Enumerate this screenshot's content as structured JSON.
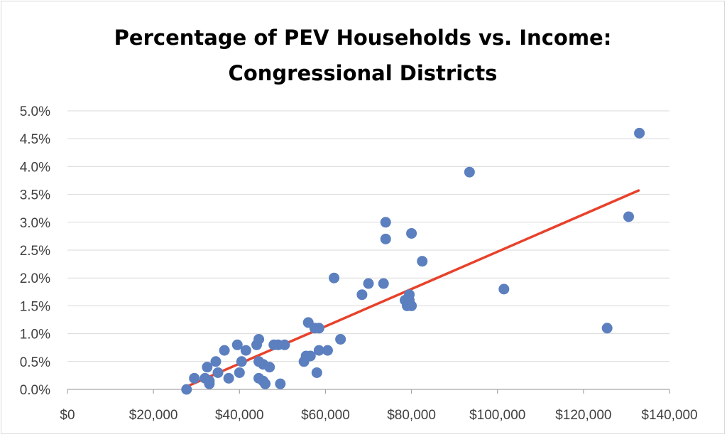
{
  "chart_data": {
    "type": "scatter",
    "title": "Percentage of PEV Households vs. Income:",
    "subtitle": "Congressional Districts",
    "xlabel": "",
    "ylabel": "",
    "xlim": [
      0,
      140000
    ],
    "ylim": [
      0,
      0.05
    ],
    "x_ticks": [
      0,
      20000,
      40000,
      60000,
      80000,
      100000,
      120000,
      140000
    ],
    "x_tick_labels": [
      "$0",
      "$20,000",
      "$40,000",
      "$60,000",
      "$80,000",
      "$100,000",
      "$120,000",
      "$140,000"
    ],
    "y_ticks": [
      0,
      0.005,
      0.01,
      0.015,
      0.02,
      0.025,
      0.03,
      0.035,
      0.04,
      0.045,
      0.05
    ],
    "y_tick_labels": [
      "0.0%",
      "0.5%",
      "1.0%",
      "1.5%",
      "2.0%",
      "2.5%",
      "3.0%",
      "3.5%",
      "4.0%",
      "4.5%",
      "5.0%"
    ],
    "grid": true,
    "legend": "none",
    "colors": {
      "points": "#5b7fbf",
      "trendline": "#e8412b",
      "grid": "#d9d9d9",
      "axis": "#a6a6a6"
    },
    "series": [
      {
        "marker": "circle",
        "points": [
          [
            27700,
            0.0
          ],
          [
            29500,
            0.002
          ],
          [
            32000,
            0.002
          ],
          [
            32500,
            0.004
          ],
          [
            33000,
            0.001
          ],
          [
            33000,
            0.0015
          ],
          [
            34500,
            0.005
          ],
          [
            35000,
            0.003
          ],
          [
            36500,
            0.007
          ],
          [
            37500,
            0.002
          ],
          [
            39500,
            0.008
          ],
          [
            40000,
            0.003
          ],
          [
            40500,
            0.005
          ],
          [
            41500,
            0.007
          ],
          [
            44000,
            0.008
          ],
          [
            44500,
            0.009
          ],
          [
            44500,
            0.005
          ],
          [
            44500,
            0.002
          ],
          [
            45500,
            0.0045
          ],
          [
            45500,
            0.0015
          ],
          [
            46000,
            0.001
          ],
          [
            47000,
            0.004
          ],
          [
            48000,
            0.008
          ],
          [
            49000,
            0.008
          ],
          [
            49500,
            0.001
          ],
          [
            50500,
            0.008
          ],
          [
            55000,
            0.005
          ],
          [
            55500,
            0.006
          ],
          [
            56000,
            0.012
          ],
          [
            56500,
            0.006
          ],
          [
            57500,
            0.011
          ],
          [
            58000,
            0.003
          ],
          [
            58500,
            0.011
          ],
          [
            58500,
            0.007
          ],
          [
            60500,
            0.007
          ],
          [
            62000,
            0.02
          ],
          [
            63500,
            0.009
          ],
          [
            68500,
            0.017
          ],
          [
            70000,
            0.019
          ],
          [
            73500,
            0.019
          ],
          [
            74000,
            0.03
          ],
          [
            74000,
            0.027
          ],
          [
            78500,
            0.016
          ],
          [
            79000,
            0.015
          ],
          [
            79500,
            0.017
          ],
          [
            79500,
            0.016
          ],
          [
            80000,
            0.028
          ],
          [
            80000,
            0.015
          ],
          [
            82500,
            0.023
          ],
          [
            93500,
            0.039
          ],
          [
            101500,
            0.018
          ],
          [
            125500,
            0.011
          ],
          [
            130500,
            0.031
          ],
          [
            133000,
            0.046
          ]
        ]
      }
    ],
    "trendline": {
      "type": "linear",
      "x": [
        27700,
        132800
      ],
      "y": [
        0.0005,
        0.0357
      ]
    }
  }
}
